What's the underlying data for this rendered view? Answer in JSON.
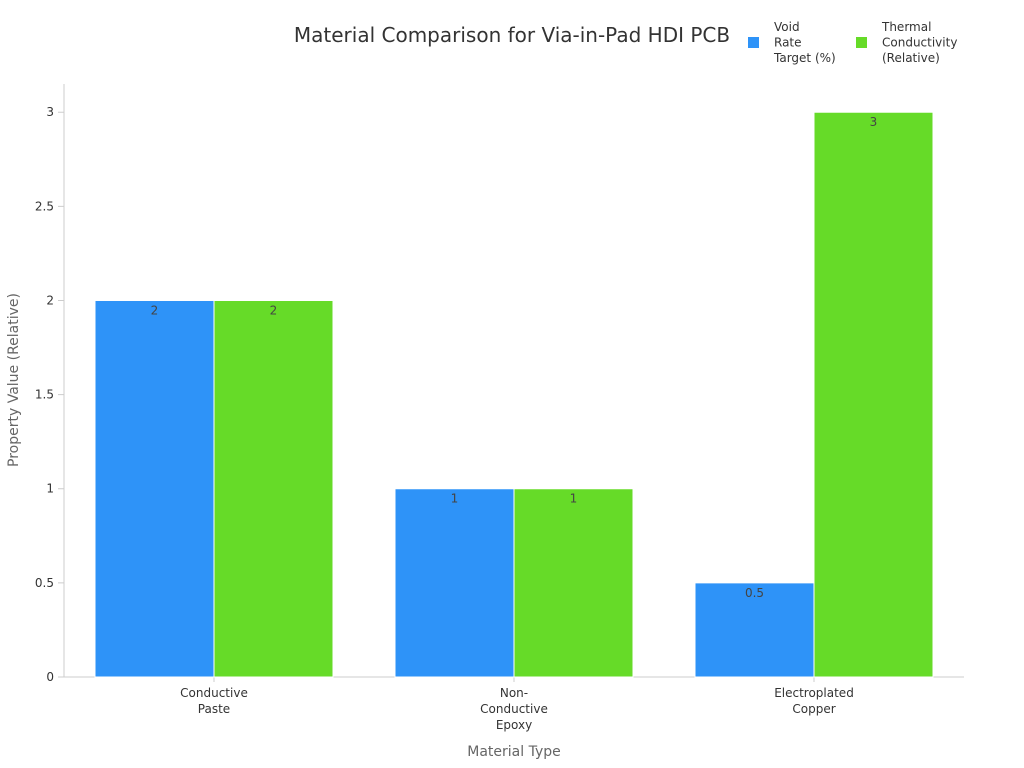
{
  "chart_data": {
    "type": "bar",
    "title": "Material Comparison for Via-in-Pad HDI PCB",
    "xlabel": "Material Type",
    "ylabel": "Property Value (Relative)",
    "categories": [
      "Conductive Paste",
      "Non-Conductive Epoxy",
      "Electroplated Copper"
    ],
    "category_lines": [
      [
        "Conductive",
        "Paste"
      ],
      [
        "Non-",
        "Conductive",
        "Epoxy"
      ],
      [
        "Electroplated",
        "Copper"
      ]
    ],
    "series": [
      {
        "name": "Void Rate Target (%)",
        "name_lines": [
          "Void",
          "Rate",
          "Target (%)"
        ],
        "color": "#2e93f8",
        "values": [
          2,
          1,
          0.5
        ],
        "labels": [
          "2",
          "1",
          "0.5"
        ]
      },
      {
        "name": "Thermal Conductivity (Relative)",
        "name_lines": [
          "Thermal",
          "Conductivity",
          "(Relative)"
        ],
        "color": "#66db28",
        "values": [
          2,
          1,
          3
        ],
        "labels": [
          "2",
          "1",
          "3"
        ]
      }
    ],
    "ylim": [
      0,
      3.15
    ],
    "yticks": [
      0,
      0.5,
      1,
      1.5,
      2,
      2.5,
      3
    ],
    "ytick_labels": [
      "0",
      "0.5",
      "1",
      "1.5",
      "2",
      "2.5",
      "3"
    ],
    "grid": false,
    "legend_position": "top-right"
  }
}
